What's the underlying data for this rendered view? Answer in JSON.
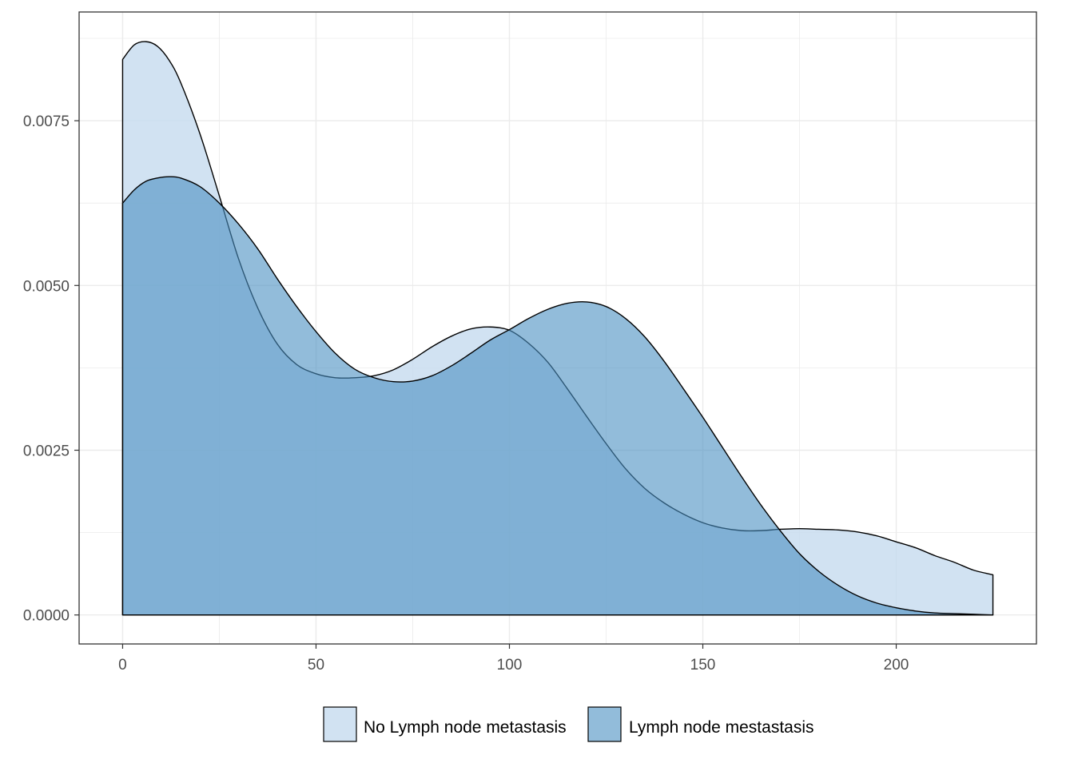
{
  "chart_data": {
    "type": "area",
    "subtype": "density",
    "title": "",
    "xlabel": "",
    "ylabel": "",
    "xlim": [
      -11.25,
      236.25
    ],
    "ylim": [
      -0.00044,
      0.00915
    ],
    "x_ticks": [
      0,
      50,
      100,
      150,
      200
    ],
    "x_tick_labels": [
      "0",
      "50",
      "100",
      "150",
      "200"
    ],
    "y_ticks": [
      0,
      0.0025,
      0.005,
      0.0075
    ],
    "y_tick_labels": [
      "0.0000",
      "0.0025",
      "0.0050",
      "0.0075"
    ],
    "x_range": [
      0,
      225
    ],
    "grid": true,
    "legend_position": "bottom",
    "series": [
      {
        "name": "No Lymph node metastasis",
        "fill": "#c6dbef",
        "x": [
          0,
          3,
          6,
          9,
          12,
          15,
          20,
          25,
          30,
          35,
          40,
          45,
          50,
          55,
          60,
          65,
          70,
          75,
          80,
          85,
          90,
          95,
          100,
          105,
          110,
          115,
          120,
          125,
          130,
          135,
          140,
          145,
          150,
          155,
          160,
          165,
          170,
          175,
          180,
          185,
          190,
          195,
          200,
          205,
          210,
          215,
          220,
          225
        ],
        "values": [
          0.00843,
          0.00865,
          0.0087,
          0.00863,
          0.00842,
          0.00808,
          0.0073,
          0.00636,
          0.0054,
          0.00465,
          0.00411,
          0.0038,
          0.00366,
          0.0036,
          0.0036,
          0.00363,
          0.00372,
          0.00388,
          0.00407,
          0.00423,
          0.00434,
          0.00437,
          0.00432,
          0.00412,
          0.00383,
          0.00343,
          0.00301,
          0.0026,
          0.00222,
          0.00192,
          0.0017,
          0.00153,
          0.0014,
          0.00132,
          0.00128,
          0.00128,
          0.0013,
          0.00131,
          0.0013,
          0.00129,
          0.00126,
          0.0012,
          0.00111,
          0.00102,
          0.0009,
          0.0008,
          0.00068,
          0.00061
        ]
      },
      {
        "name": "Lymph node mestastasis",
        "fill": "#4a8fc1",
        "x": [
          0,
          3,
          6,
          9,
          12,
          15,
          20,
          25,
          30,
          35,
          40,
          45,
          50,
          55,
          60,
          65,
          70,
          75,
          80,
          85,
          90,
          95,
          100,
          105,
          110,
          115,
          120,
          125,
          130,
          135,
          140,
          145,
          150,
          155,
          160,
          165,
          170,
          175,
          180,
          185,
          190,
          195,
          200,
          205,
          210,
          215,
          220,
          225
        ],
        "values": [
          0.00625,
          0.00645,
          0.00658,
          0.00663,
          0.00665,
          0.00663,
          0.0065,
          0.00625,
          0.00593,
          0.00555,
          0.0051,
          0.00468,
          0.0043,
          0.00397,
          0.00373,
          0.0036,
          0.00354,
          0.00355,
          0.00363,
          0.00378,
          0.00397,
          0.00417,
          0.00433,
          0.0045,
          0.00464,
          0.00473,
          0.00475,
          0.00468,
          0.0045,
          0.00422,
          0.00385,
          0.00343,
          0.003,
          0.00255,
          0.0021,
          0.00167,
          0.00128,
          0.00093,
          0.00066,
          0.00045,
          0.00029,
          0.00018,
          0.00011,
          6e-05,
          3e-05,
          2e-05,
          1e-05,
          0.0
        ]
      }
    ]
  }
}
